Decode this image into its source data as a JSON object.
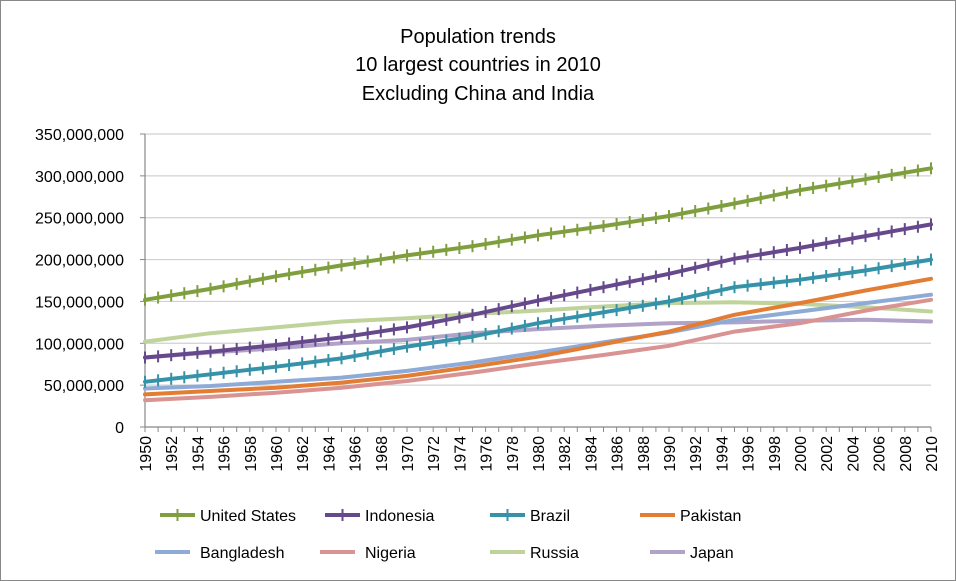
{
  "chart_data": {
    "type": "line",
    "title": [
      "Population trends",
      "10 largest countries in 2010",
      "Excluding China and India"
    ],
    "ylim": [
      0,
      350000000
    ],
    "yticks": [
      "0",
      "50,000,000",
      "100,000,000",
      "150,000,000",
      "200,000,000",
      "250,000,000",
      "300,000,000",
      "350,000,000"
    ],
    "xlim": [
      1950,
      2010
    ],
    "xticks": [
      "1950",
      "1952",
      "1954",
      "1956",
      "1958",
      "1960",
      "1962",
      "1964",
      "1966",
      "1968",
      "1970",
      "1972",
      "1974",
      "1976",
      "1978",
      "1980",
      "1982",
      "1984",
      "1986",
      "1988",
      "1990",
      "1992",
      "1994",
      "1996",
      "1998",
      "2000",
      "2002",
      "2004",
      "2006",
      "2008",
      "2010"
    ],
    "grid": true,
    "legend_position": "bottom",
    "x": [
      1950,
      1955,
      1960,
      1965,
      1970,
      1975,
      1980,
      1985,
      1990,
      1995,
      2000,
      2005,
      2010
    ],
    "series": [
      {
        "name": "United States",
        "color": "#7f9f3f",
        "marker": "plus",
        "values": [
          152000000,
          165000000,
          180000000,
          193000000,
          205000000,
          216000000,
          229000000,
          240000000,
          252000000,
          267000000,
          283000000,
          296000000,
          309000000
        ]
      },
      {
        "name": "Indonesia",
        "color": "#65498c",
        "marker": "plus",
        "values": [
          83000000,
          90000000,
          98000000,
          107000000,
          119000000,
          134000000,
          151000000,
          167000000,
          183000000,
          201000000,
          214000000,
          228000000,
          242000000
        ]
      },
      {
        "name": "Brazil",
        "color": "#3592a8",
        "marker": "plus",
        "values": [
          54000000,
          63000000,
          72000000,
          82000000,
          96000000,
          108000000,
          124000000,
          137000000,
          150000000,
          167000000,
          176000000,
          187000000,
          200000000
        ]
      },
      {
        "name": "Pakistan",
        "color": "#e27d33",
        "marker": "none",
        "values": [
          39000000,
          43000000,
          47000000,
          53000000,
          61000000,
          72000000,
          84000000,
          99000000,
          114000000,
          134000000,
          148000000,
          163000000,
          177000000
        ]
      },
      {
        "name": "Bangladesh",
        "color": "#8eaad6",
        "marker": "none",
        "values": [
          46000000,
          49000000,
          54000000,
          59000000,
          67000000,
          77000000,
          89000000,
          101000000,
          113000000,
          128000000,
          138000000,
          148000000,
          158000000
        ]
      },
      {
        "name": "Nigeria",
        "color": "#d99392",
        "marker": "none",
        "values": [
          32000000,
          36000000,
          41000000,
          47000000,
          55000000,
          65000000,
          76000000,
          86000000,
          97000000,
          114000000,
          124000000,
          139000000,
          152000000
        ]
      },
      {
        "name": "Russia",
        "color": "#bfd39a",
        "marker": "none",
        "values": [
          102000000,
          112000000,
          119000000,
          126000000,
          130000000,
          135000000,
          139000000,
          144000000,
          148000000,
          149000000,
          147000000,
          143000000,
          138000000
        ]
      },
      {
        "name": "Japan",
        "color": "#b1a2c8",
        "marker": "none",
        "values": [
          83000000,
          89000000,
          94000000,
          100000000,
          104000000,
          112000000,
          117000000,
          121000000,
          124000000,
          125000000,
          127000000,
          128000000,
          126000000
        ]
      }
    ]
  }
}
